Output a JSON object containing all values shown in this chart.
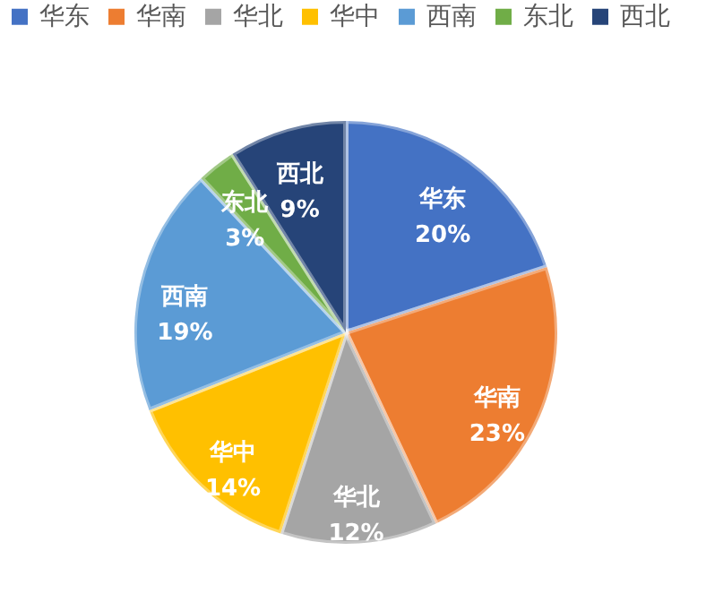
{
  "chart_data": {
    "type": "pie",
    "categories": [
      "华东",
      "华南",
      "华北",
      "华中",
      "西南",
      "东北",
      "西北"
    ],
    "values": [
      20,
      23,
      12,
      14,
      19,
      3,
      9
    ],
    "value_labels": [
      "20%",
      "23%",
      "12%",
      "14%",
      "19%",
      "3%",
      "9%"
    ],
    "colors": [
      "#4472c4",
      "#ed7d31",
      "#a5a5a5",
      "#ffc000",
      "#5b9bd5",
      "#70ad47",
      "#264478"
    ],
    "legend": "top"
  }
}
